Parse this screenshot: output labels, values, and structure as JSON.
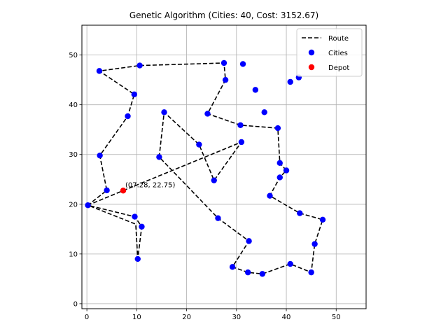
{
  "chart_data": {
    "type": "scatter",
    "title": "Genetic Algorithm (Cities: 40, Cost: 3152.67)",
    "xlabel": "",
    "ylabel": "",
    "xlim": [
      -1,
      56
    ],
    "ylim": [
      -1,
      56
    ],
    "xticks": [
      0,
      10,
      20,
      30,
      40,
      50
    ],
    "yticks": [
      0,
      10,
      20,
      30,
      40,
      50
    ],
    "grid": true,
    "legend": {
      "position": "top-right",
      "entries": [
        {
          "label": "Route",
          "kind": "line",
          "color": "#000000"
        },
        {
          "label": "Cities",
          "kind": "marker",
          "color": "#0000ff"
        },
        {
          "label": "Depot",
          "kind": "marker",
          "color": "#ff0000"
        }
      ]
    },
    "depot": {
      "x": 7.28,
      "y": 22.75,
      "label": "(07.28, 22.75)"
    },
    "route": [
      [
        7.28,
        22.75
      ],
      [
        31,
        32.5
      ],
      [
        25.5,
        24.8
      ],
      [
        22.5,
        32
      ],
      [
        15.5,
        38.5
      ],
      [
        14.5,
        29.5
      ],
      [
        26.3,
        17.2
      ],
      [
        32.5,
        12.6
      ],
      [
        29.2,
        7.4
      ],
      [
        32.3,
        6.3
      ],
      [
        35.2,
        6
      ],
      [
        40.8,
        8
      ],
      [
        45,
        6.3
      ],
      [
        45.7,
        12
      ],
      [
        47.3,
        16.9
      ],
      [
        42.7,
        18.2
      ],
      [
        36.7,
        21.7
      ],
      [
        38.7,
        25.4
      ],
      [
        40,
        26.8
      ],
      [
        38.7,
        28.3
      ],
      [
        38.3,
        35.3
      ],
      [
        30.8,
        35.9
      ],
      [
        24.2,
        38.2
      ],
      [
        27.8,
        45
      ],
      [
        27.5,
        48.4
      ],
      [
        10.6,
        47.9
      ],
      [
        2.5,
        46.8
      ],
      [
        9.5,
        42.1
      ],
      [
        8.2,
        37.7
      ],
      [
        2.6,
        29.8
      ],
      [
        4,
        22.8
      ],
      [
        0.2,
        19.8
      ],
      [
        9.6,
        17.5
      ],
      [
        11,
        15.5
      ],
      [
        10.2,
        9
      ],
      [
        9.8,
        16
      ],
      [
        0.2,
        19.8
      ],
      [
        7.28,
        22.75
      ]
    ],
    "cities": [
      [
        31,
        32.5
      ],
      [
        25.5,
        24.8
      ],
      [
        22.5,
        32
      ],
      [
        15.5,
        38.5
      ],
      [
        14.5,
        29.5
      ],
      [
        26.3,
        17.2
      ],
      [
        32.5,
        12.6
      ],
      [
        29.2,
        7.4
      ],
      [
        32.3,
        6.3
      ],
      [
        35.2,
        6
      ],
      [
        40.8,
        8
      ],
      [
        45,
        6.3
      ],
      [
        45.7,
        12
      ],
      [
        47.3,
        16.9
      ],
      [
        42.7,
        18.2
      ],
      [
        36.7,
        21.7
      ],
      [
        38.7,
        25.4
      ],
      [
        40,
        26.8
      ],
      [
        38.7,
        28.3
      ],
      [
        38.3,
        35.3
      ],
      [
        30.8,
        35.9
      ],
      [
        24.2,
        38.2
      ],
      [
        27.8,
        45
      ],
      [
        27.5,
        48.4
      ],
      [
        10.6,
        47.9
      ],
      [
        2.5,
        46.8
      ],
      [
        9.5,
        42.1
      ],
      [
        8.2,
        37.7
      ],
      [
        2.6,
        29.8
      ],
      [
        4,
        22.8
      ],
      [
        0.2,
        19.8
      ],
      [
        9.6,
        17.5
      ],
      [
        11,
        15.5
      ],
      [
        10.2,
        9
      ],
      [
        35.6,
        38.5
      ],
      [
        33.8,
        43
      ],
      [
        31.3,
        48.2
      ],
      [
        42.5,
        45.5
      ],
      [
        40.8,
        44.6
      ]
    ]
  }
}
